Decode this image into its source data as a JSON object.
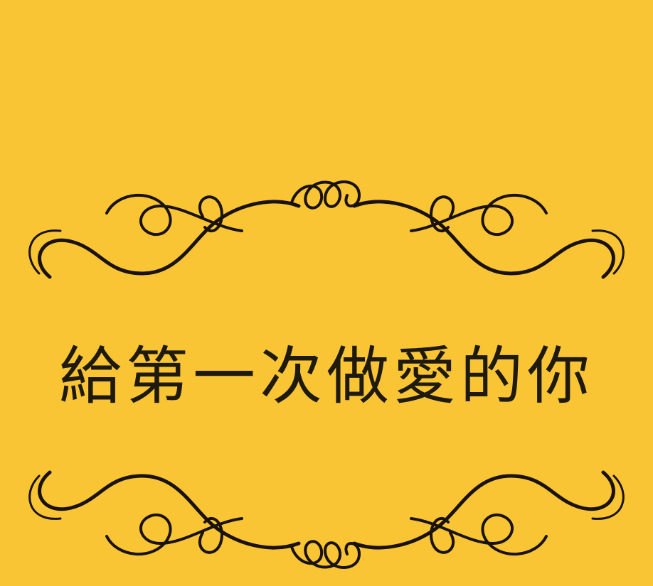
{
  "title": "給第一次做愛的你",
  "colors": {
    "background": "#F9C535",
    "ink": "#1a1208"
  },
  "ornaments": [
    "flourish-divider-top",
    "flourish-divider-bottom"
  ]
}
